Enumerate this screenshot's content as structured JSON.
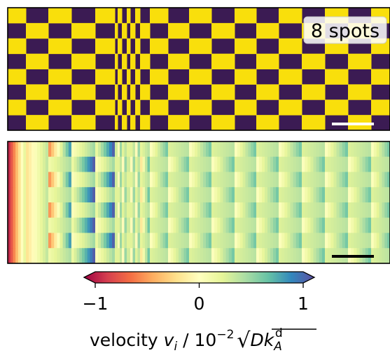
{
  "chart_data": [
    {
      "type": "heatmap",
      "panel": "pattern",
      "annotation": "8 spots",
      "palette": [
        "#3b1b53",
        "#f9df0c"
      ],
      "rows": 8,
      "cols": 17,
      "scale_bar": true
    },
    {
      "type": "heatmap",
      "panel": "velocity",
      "colormap": [
        "#9e0142",
        "#d53e4f",
        "#f46d43",
        "#fdae61",
        "#fee08b",
        "#ffffbf",
        "#e6f598",
        "#abdda4",
        "#66c2a5",
        "#3288bd",
        "#5e4fa2"
      ],
      "colorbar": {
        "range": [
          -1,
          1
        ],
        "ticks": [
          -1,
          0,
          1
        ],
        "tick_labels": [
          "−1",
          "0",
          "1"
        ],
        "extend": "both",
        "label_prefix": "velocity ",
        "label_var": "v",
        "label_sub": "i",
        "label_mid": " / 10",
        "label_exp": "−2",
        "label_root": "√",
        "label_D": "Dk",
        "label_Asub": "A",
        "label_dsup": "d"
      },
      "scale_bar": true
    }
  ]
}
